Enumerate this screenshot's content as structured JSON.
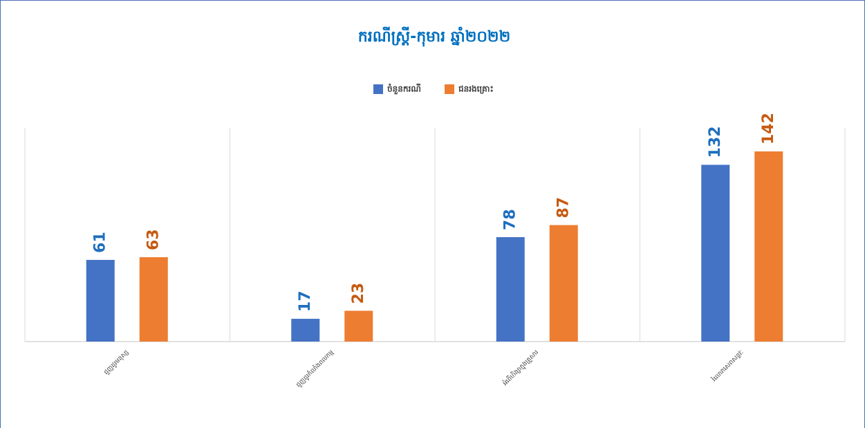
{
  "chart_data": {
    "type": "bar",
    "title": "ករណីស្ត្រី-កុមារ ឆ្នាំ២០២២",
    "categories": [
      "ជួញដូរមនុស្ស",
      "ជួញដូរកំលាំងពលកម្ម",
      "អំពើហិង្សាក្នុងគ្រួសារ",
      "រំលោភសេពសន្ថវៈ"
    ],
    "series": [
      {
        "name": "ចំនួនករណី",
        "color": "#4472c4",
        "values": [
          61,
          17,
          78,
          132
        ]
      },
      {
        "name": "ជនរងគ្រោះ",
        "color": "#ed7d31",
        "values": [
          63,
          23,
          87,
          142
        ]
      }
    ],
    "legend": "top",
    "grid": true
  }
}
